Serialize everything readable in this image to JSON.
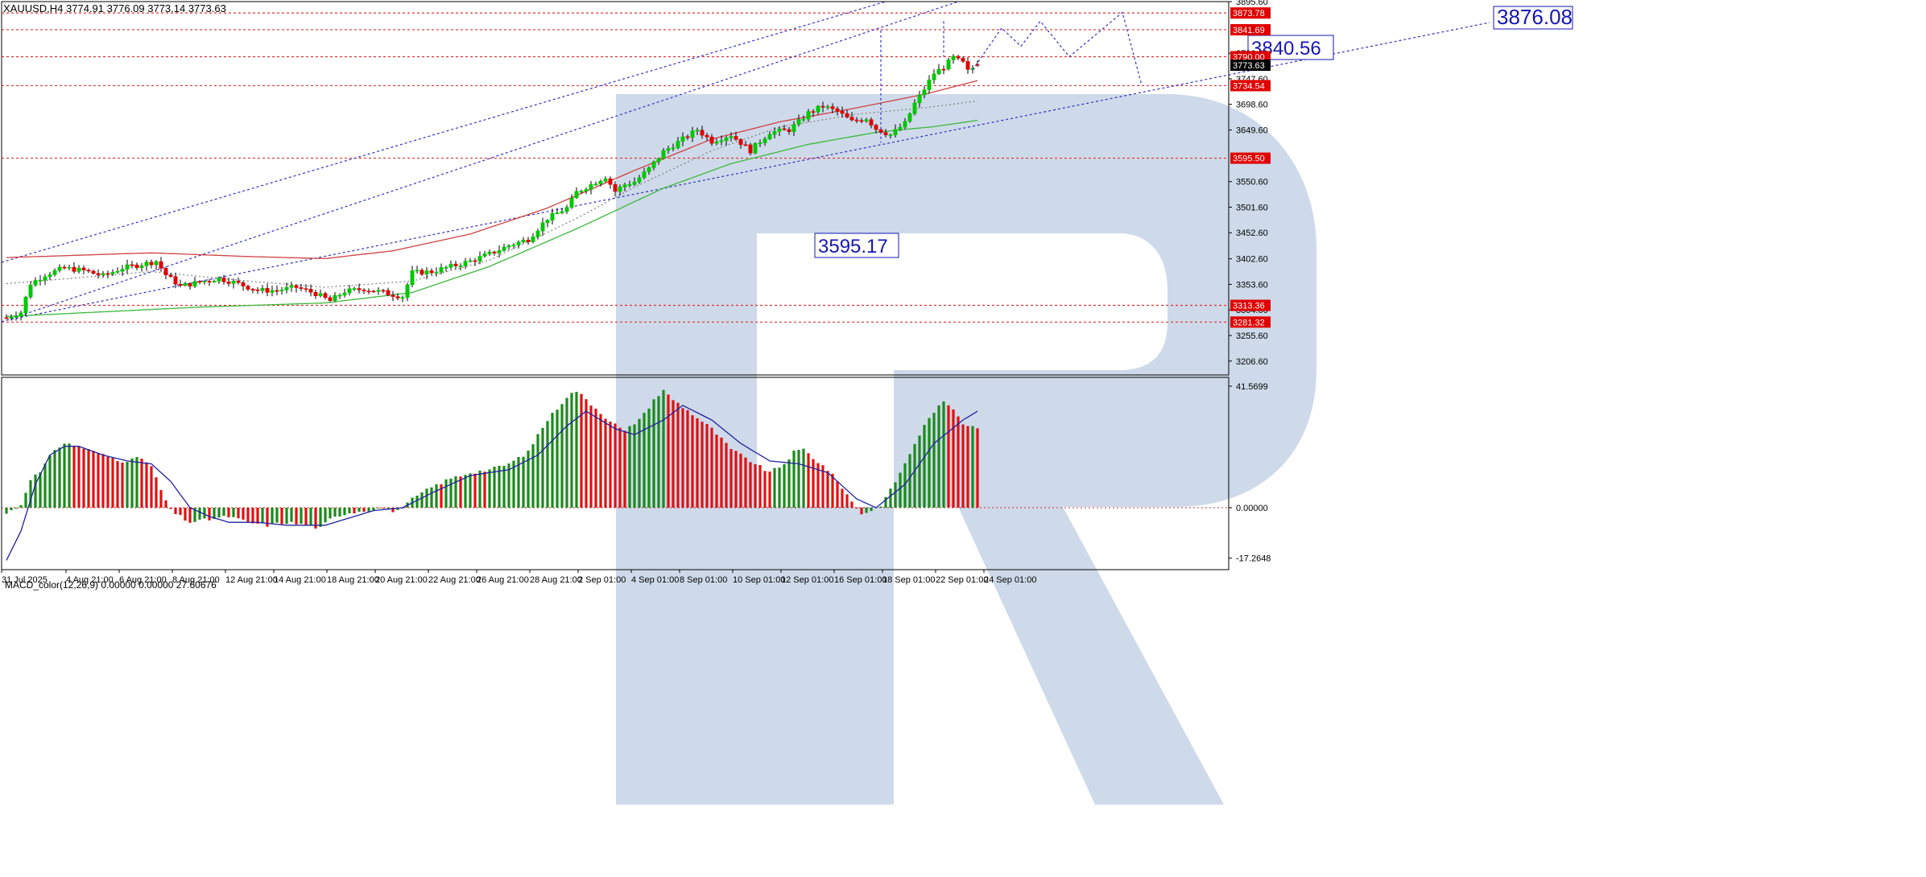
{
  "window": {
    "price_header": "XAUUSD,H4  3774.91 3776.09 3773.14 3773.63",
    "macd_header": "MACD_color(12,26,9) 0.00000 0.00000 27.60676"
  },
  "colors": {
    "background": "#ffffff",
    "bull": "#00c800",
    "bear": "#e00000",
    "red_ma": "#d04040",
    "green_ma": "#3cb83c",
    "dotted_ma": "#888888",
    "trend_line": "#3030c0",
    "level_line": "#e03030",
    "macd_pos": "#1a8a1a",
    "macd_neg": "#e01010",
    "signal": "#2020a0",
    "watermark": "#c5d4e6",
    "callout_text": "#1616b4",
    "price_tag_red": "#e00000",
    "price_tag_black": "#000000"
  },
  "chart_data": [
    {
      "type": "candlestick",
      "symbol": "XAUUSD",
      "timeframe": "H4",
      "ohlc_last": {
        "open": 3774.91,
        "high": 3776.09,
        "low": 3773.14,
        "close": 3773.63
      },
      "ylim": [
        3180,
        3895.6
      ],
      "y_ticks": [
        "3895.60",
        "3796.60",
        "3747.60",
        "3698.60",
        "3649.60",
        "3550.60",
        "3501.60",
        "3452.60",
        "3402.60",
        "3353.60",
        "3304.60",
        "3255.60",
        "3206.60"
      ],
      "x_ticks": [
        "31 Jul 2025",
        "4 Aug 21:00",
        "6 Aug 21:00",
        "8 Aug 21:00",
        "12 Aug 21:00",
        "14 Aug 21:00",
        "18 Aug 21:00",
        "20 Aug 21:00",
        "22 Aug 21:00",
        "26 Aug 21:00",
        "28 Aug 21:00",
        "2 Sep 01:00",
        "4 Sep 01:00",
        "8 Sep 01:00",
        "10 Sep 01:00",
        "12 Sep 01:00",
        "16 Sep 01:00",
        "18 Sep 01:00",
        "22 Sep 01:00",
        "24 Sep 01:00"
      ],
      "levels": [
        {
          "value": 3873.78,
          "label": "3873.78"
        },
        {
          "value": 3841.69,
          "label": "3841.69"
        },
        {
          "value": 3790.0,
          "label": "3790.00"
        },
        {
          "value": 3734.54,
          "label": "3734.54"
        },
        {
          "value": 3595.5,
          "label": "3595.50"
        },
        {
          "value": 3313.36,
          "label": "3313.36"
        },
        {
          "value": 3281.32,
          "label": "3281.32"
        }
      ],
      "current_price": {
        "value": 3773.63,
        "label": "3773.63"
      },
      "callouts": [
        {
          "label": "3876.08",
          "price": 3876.08
        },
        {
          "label": "3840.56",
          "price": 3840.56
        },
        {
          "label": "3595.17",
          "price": 3595.17
        }
      ],
      "close_path": [
        [
          0,
          3290
        ],
        [
          3,
          3300
        ],
        [
          5,
          3355
        ],
        [
          8,
          3372
        ],
        [
          12,
          3385
        ],
        [
          16,
          3380
        ],
        [
          20,
          3370
        ],
        [
          24,
          3385
        ],
        [
          28,
          3392
        ],
        [
          31,
          3398
        ],
        [
          33,
          3372
        ],
        [
          36,
          3350
        ],
        [
          40,
          3358
        ],
        [
          44,
          3365
        ],
        [
          48,
          3355
        ],
        [
          52,
          3342
        ],
        [
          56,
          3342
        ],
        [
          60,
          3348
        ],
        [
          64,
          3336
        ],
        [
          67,
          3322
        ],
        [
          70,
          3340
        ],
        [
          74,
          3345
        ],
        [
          78,
          3338
        ],
        [
          82,
          3330
        ],
        [
          84,
          3376
        ],
        [
          88,
          3378
        ],
        [
          92,
          3388
        ],
        [
          96,
          3398
        ],
        [
          100,
          3412
        ],
        [
          104,
          3428
        ],
        [
          108,
          3440
        ],
        [
          112,
          3480
        ],
        [
          116,
          3500
        ],
        [
          118,
          3530
        ],
        [
          121,
          3545
        ],
        [
          124,
          3560
        ],
        [
          126,
          3532
        ],
        [
          128,
          3545
        ],
        [
          130,
          3550
        ],
        [
          133,
          3575
        ],
        [
          136,
          3608
        ],
        [
          140,
          3632
        ],
        [
          143,
          3650
        ],
        [
          146,
          3628
        ],
        [
          150,
          3640
        ],
        [
          154,
          3610
        ],
        [
          158,
          3645
        ],
        [
          162,
          3650
        ],
        [
          164,
          3665
        ],
        [
          166,
          3682
        ],
        [
          169,
          3695
        ],
        [
          172,
          3685
        ],
        [
          175,
          3666
        ],
        [
          178,
          3672
        ],
        [
          180,
          3652
        ],
        [
          183,
          3640
        ],
        [
          186,
          3662
        ],
        [
          188,
          3700
        ],
        [
          190,
          3728
        ],
        [
          192,
          3758
        ],
        [
          194,
          3770
        ],
        [
          196,
          3788
        ],
        [
          198,
          3778
        ],
        [
          199,
          3762
        ],
        [
          201,
          3773.63
        ]
      ],
      "moving_averages": [
        {
          "name": "red",
          "points": [
            [
              0,
              3405
            ],
            [
              30,
              3414
            ],
            [
              50,
              3407
            ],
            [
              66,
              3403
            ],
            [
              80,
              3418
            ],
            [
              96,
              3450
            ],
            [
              112,
              3500
            ],
            [
              130,
              3572
            ],
            [
              146,
              3632
            ],
            [
              160,
              3665
            ],
            [
              176,
              3692
            ],
            [
              190,
              3718
            ],
            [
              201,
              3744
            ]
          ]
        },
        {
          "name": "green",
          "points": [
            [
              0,
              3292
            ],
            [
              40,
              3310
            ],
            [
              66,
              3318
            ],
            [
              84,
              3338
            ],
            [
              100,
              3388
            ],
            [
              118,
              3460
            ],
            [
              136,
              3538
            ],
            [
              150,
              3585
            ],
            [
              166,
              3622
            ],
            [
              180,
              3645
            ],
            [
              192,
              3656
            ],
            [
              201,
              3668
            ]
          ]
        },
        {
          "name": "dotted",
          "points": [
            [
              0,
              3355
            ],
            [
              30,
              3378
            ],
            [
              50,
              3360
            ],
            [
              66,
              3348
            ],
            [
              84,
              3360
            ],
            [
              100,
              3400
            ],
            [
              118,
              3480
            ],
            [
              130,
              3540
            ],
            [
              146,
              3610
            ],
            [
              160,
              3655
            ],
            [
              176,
              3680
            ],
            [
              190,
              3692
            ],
            [
              201,
              3705
            ]
          ]
        }
      ],
      "projection": [
        [
          200,
          3765
        ],
        [
          206,
          3845
        ],
        [
          210,
          3810
        ],
        [
          214,
          3858
        ],
        [
          220,
          3790
        ],
        [
          231,
          3875
        ],
        [
          235,
          3735
        ]
      ]
    },
    {
      "type": "bar",
      "title": "MACD_color(12,26,9)",
      "ylim": [
        -17.2648,
        41.5699
      ],
      "y_ticks": [
        "41.5699",
        "0.00000",
        "-17.2648"
      ],
      "histogram_path": [
        [
          0,
          -2
        ],
        [
          3,
          1
        ],
        [
          5,
          10
        ],
        [
          7,
          12
        ],
        [
          10,
          20
        ],
        [
          12,
          22
        ],
        [
          15,
          21
        ],
        [
          20,
          18
        ],
        [
          24,
          16
        ],
        [
          28,
          17
        ],
        [
          30,
          14
        ],
        [
          32,
          6
        ],
        [
          34,
          -1
        ],
        [
          38,
          -5
        ],
        [
          42,
          -4
        ],
        [
          46,
          -3
        ],
        [
          50,
          -5
        ],
        [
          54,
          -6
        ],
        [
          58,
          -5
        ],
        [
          62,
          -6
        ],
        [
          65,
          -7
        ],
        [
          67,
          -4
        ],
        [
          70,
          -2
        ],
        [
          74,
          -1
        ],
        [
          78,
          0
        ],
        [
          80,
          -1
        ],
        [
          82,
          -0.5
        ],
        [
          84,
          3
        ],
        [
          88,
          7
        ],
        [
          92,
          10
        ],
        [
          96,
          12
        ],
        [
          100,
          13
        ],
        [
          104,
          15
        ],
        [
          108,
          19
        ],
        [
          110,
          25
        ],
        [
          112,
          30
        ],
        [
          114,
          34
        ],
        [
          116,
          38
        ],
        [
          118,
          40
        ],
        [
          120,
          37
        ],
        [
          124,
          31
        ],
        [
          128,
          26
        ],
        [
          132,
          32
        ],
        [
          134,
          37
        ],
        [
          136,
          40
        ],
        [
          138,
          37
        ],
        [
          142,
          32
        ],
        [
          146,
          27
        ],
        [
          150,
          20
        ],
        [
          154,
          16
        ],
        [
          158,
          12
        ],
        [
          161,
          15
        ],
        [
          163,
          19
        ],
        [
          165,
          20
        ],
        [
          167,
          17
        ],
        [
          170,
          13
        ],
        [
          173,
          7
        ],
        [
          175,
          2
        ],
        [
          177,
          -2
        ],
        [
          179,
          -1
        ],
        [
          181,
          1
        ],
        [
          183,
          6
        ],
        [
          186,
          15
        ],
        [
          188,
          22
        ],
        [
          190,
          28
        ],
        [
          192,
          33
        ],
        [
          194,
          36
        ],
        [
          196,
          34
        ],
        [
          198,
          29
        ],
        [
          201,
          27.6
        ]
      ],
      "signal_path": [
        [
          0,
          -18
        ],
        [
          3,
          -8
        ],
        [
          6,
          8
        ],
        [
          9,
          18
        ],
        [
          12,
          21
        ],
        [
          15,
          21
        ],
        [
          20,
          18
        ],
        [
          25,
          16
        ],
        [
          30,
          15
        ],
        [
          34,
          9
        ],
        [
          38,
          0
        ],
        [
          42,
          -3
        ],
        [
          46,
          -5
        ],
        [
          52,
          -5
        ],
        [
          58,
          -6
        ],
        [
          62,
          -6
        ],
        [
          66,
          -6
        ],
        [
          70,
          -4
        ],
        [
          76,
          -1
        ],
        [
          82,
          0
        ],
        [
          88,
          5
        ],
        [
          96,
          11
        ],
        [
          104,
          13
        ],
        [
          110,
          18
        ],
        [
          116,
          28
        ],
        [
          120,
          33
        ],
        [
          126,
          27
        ],
        [
          130,
          25
        ],
        [
          136,
          30
        ],
        [
          140,
          35
        ],
        [
          146,
          30
        ],
        [
          152,
          22
        ],
        [
          158,
          16
        ],
        [
          164,
          15
        ],
        [
          170,
          12
        ],
        [
          176,
          3
        ],
        [
          180,
          0
        ],
        [
          186,
          8
        ],
        [
          192,
          22
        ],
        [
          198,
          30
        ],
        [
          201,
          33
        ]
      ],
      "bar_count": 202
    }
  ]
}
